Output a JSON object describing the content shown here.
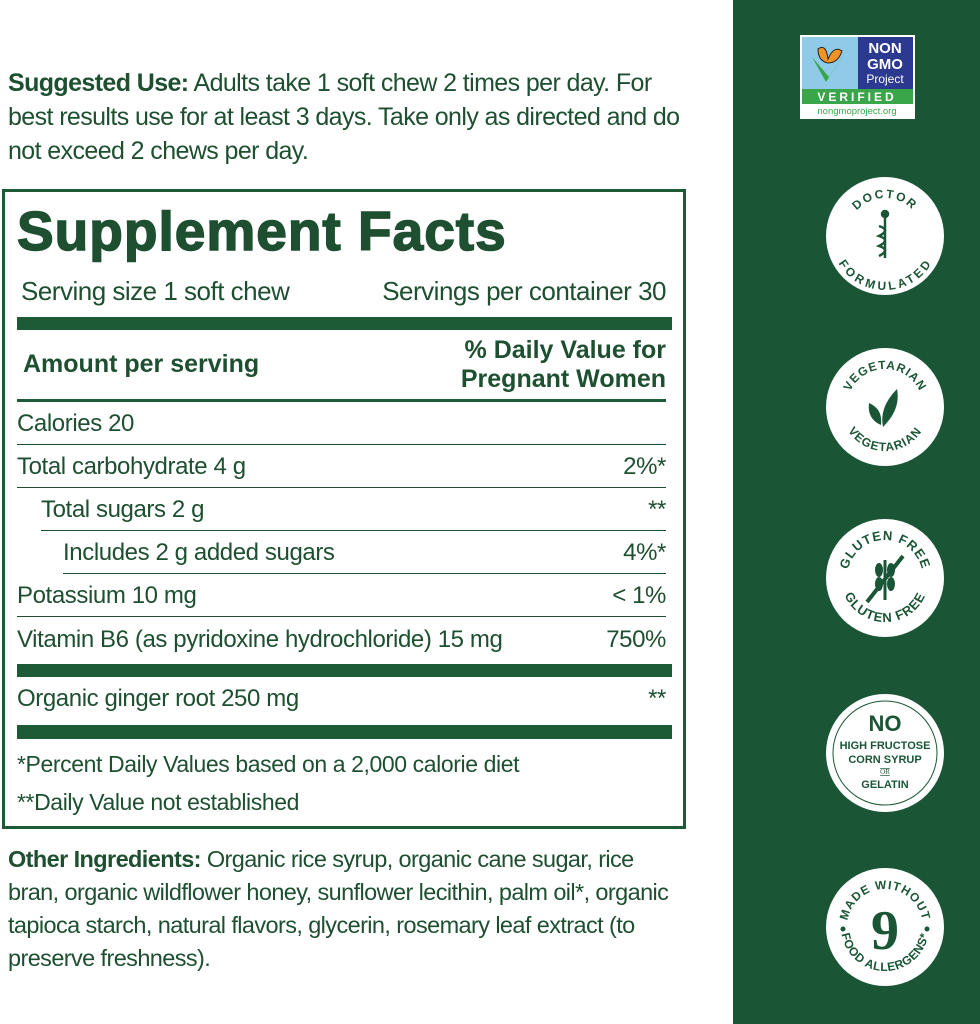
{
  "suggested_use": {
    "label": "Suggested Use:",
    "text": " Adults take 1 soft chew 2 times per day. For best results use for at least 3 days. Take only as directed and do not exceed 2 chews per day."
  },
  "supplement_facts": {
    "title": "Supplement Facts",
    "serving_size": "Serving size 1 soft chew",
    "servings_per_container": "Servings per container 30",
    "header_left": "Amount per serving",
    "header_right_1": "% Daily Value for",
    "header_right_2": "Pregnant Women",
    "rows": [
      {
        "name": "Calories 20",
        "dv": ""
      },
      {
        "name": "Total carbohydrate 4 g",
        "dv": "2%*"
      },
      {
        "name": "Total sugars 2 g",
        "dv": "**"
      },
      {
        "name": "Includes 2 g added sugars",
        "dv": "4%*"
      },
      {
        "name": "Potassium 10 mg",
        "dv": "< 1%"
      },
      {
        "name": "Vitamin B6 (as pyridoxine hydrochloride) 15 mg",
        "dv": "750%"
      }
    ],
    "extra_row": {
      "name": "Organic ginger root 250 mg",
      "dv": "**"
    },
    "footnote_1": "*Percent Daily Values based on a 2,000 calorie diet",
    "footnote_2": "**Daily Value not established"
  },
  "other_ingredients": {
    "label": "Other Ingredients:",
    "text": " Organic rice syrup, organic cane sugar, rice bran, organic wildflower honey, sunflower lecithin, palm oil*, organic tapioca starch, natural flavors, glycerin, rosemary leaf extract (to preserve freshness)."
  },
  "badges": {
    "non_gmo": {
      "line1": "NON",
      "line2": "GMO",
      "line3": "Project",
      "verified": "VERIFIED",
      "url": "nongmoproject.org"
    },
    "doctor": {
      "top": "DOCTOR",
      "bottom": "FORMULATED"
    },
    "vegetarian": {
      "top": "VEGETARIAN",
      "bottom": "VEGETARIAN"
    },
    "gluten": {
      "top": "GLUTEN FREE",
      "bottom": "GLUTEN FREE"
    },
    "hfcs": {
      "no": "NO",
      "l1": "HIGH FRUCTOSE",
      "l2": "CORN SYRUP",
      "or": "OR",
      "l3": "GELATIN"
    },
    "allergens": {
      "top": "MADE WITHOUT",
      "number": "9",
      "bottom": "FOOD ALLERGENS*"
    }
  },
  "colors": {
    "brand_green": "#1a5636",
    "text_green": "#1d4f30"
  }
}
